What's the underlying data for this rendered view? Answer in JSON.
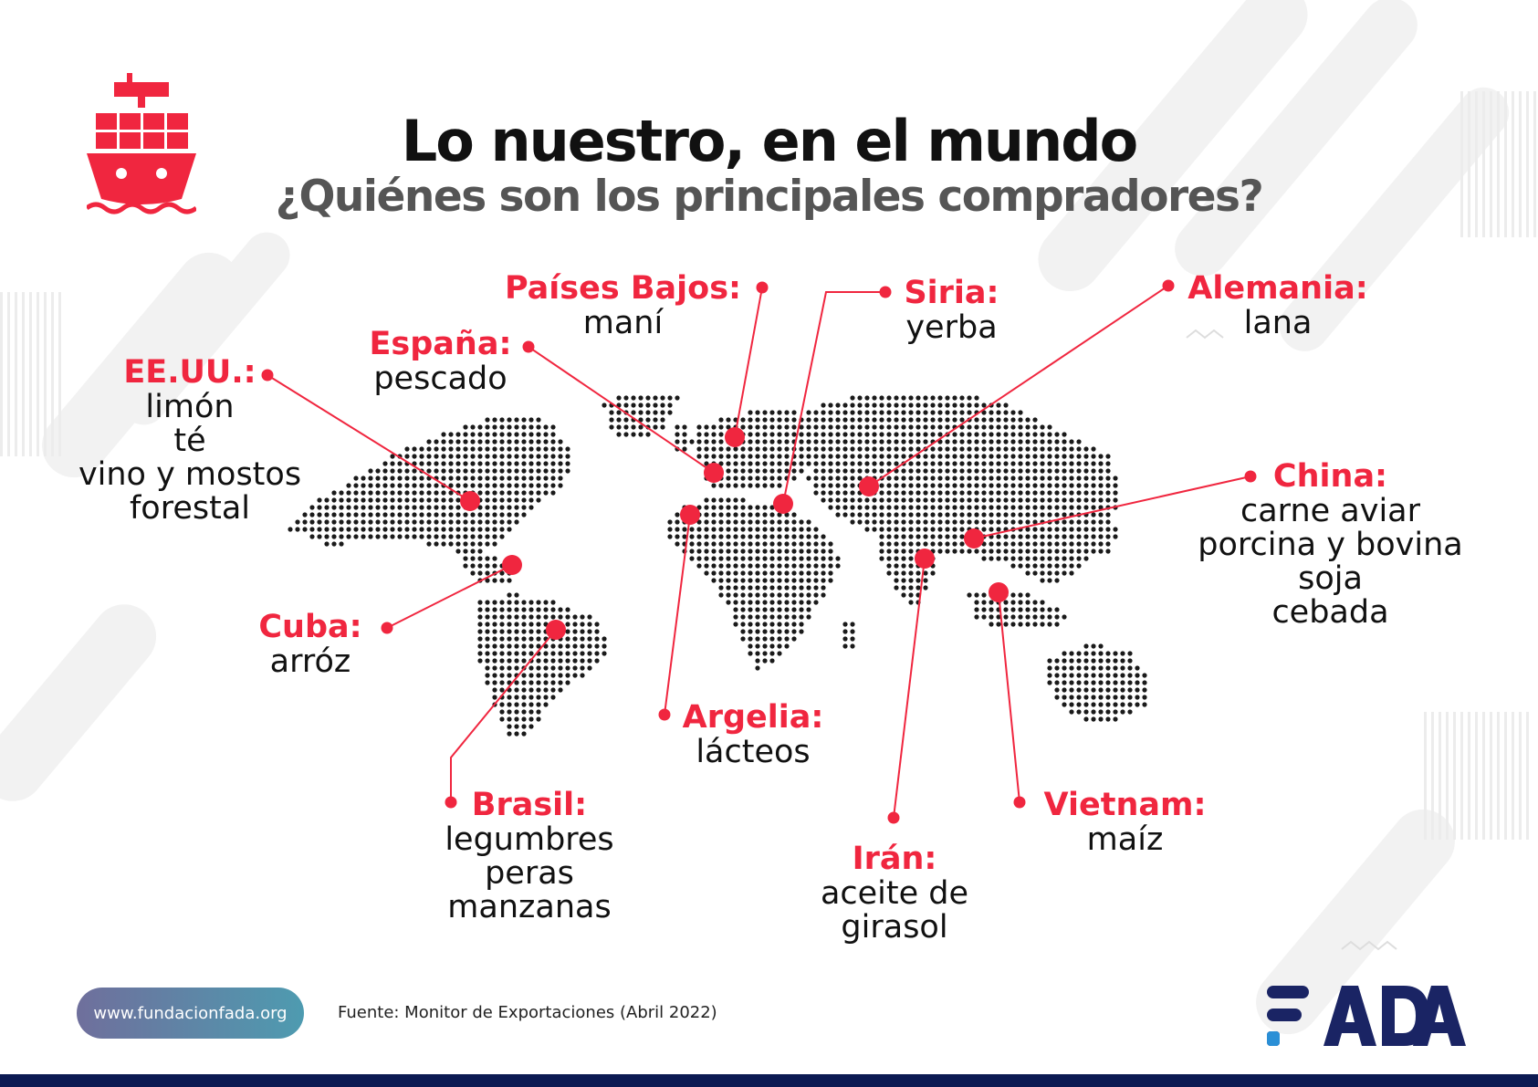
{
  "header": {
    "title": "Lo nuestro, en el mundo",
    "subtitle": "¿Quiénes son los principales compradores?"
  },
  "icons": {
    "ship": "cargo-ship-icon",
    "logo": "fada-logo"
  },
  "colors": {
    "accent": "#f0263f",
    "text": "#111111",
    "subtitle": "#555555",
    "brand_navy": "#1a2464",
    "brand_blue": "#2a8fd6",
    "map_dots": "#1a1a1a"
  },
  "markers": [
    {
      "country": "EE.UU.:",
      "products": [
        "limón",
        "té",
        "vino y mostos",
        "forestal"
      ]
    },
    {
      "country": "España:",
      "products": [
        "pescado"
      ]
    },
    {
      "country": "Países Bajos:",
      "products": [
        "maní"
      ]
    },
    {
      "country": "Siria:",
      "products": [
        "yerba"
      ]
    },
    {
      "country": "Alemania:",
      "products": [
        "lana"
      ]
    },
    {
      "country": "China:",
      "products": [
        "carne aviar",
        "porcina y bovina",
        "soja",
        "cebada"
      ]
    },
    {
      "country": "Cuba:",
      "products": [
        "arróz"
      ]
    },
    {
      "country": "Argelia:",
      "products": [
        "lácteos"
      ]
    },
    {
      "country": "Brasil:",
      "products": [
        "legumbres",
        "peras",
        "manzanas"
      ]
    },
    {
      "country": "Irán:",
      "products": [
        "aceite de",
        "girasol"
      ]
    },
    {
      "country": "Vietnam:",
      "products": [
        "maíz"
      ]
    }
  ],
  "footer": {
    "website": "www.fundacionfada.org",
    "source": "Fuente: Monitor de Exportaciones (Abril 2022)",
    "logo_text": "FADA"
  }
}
